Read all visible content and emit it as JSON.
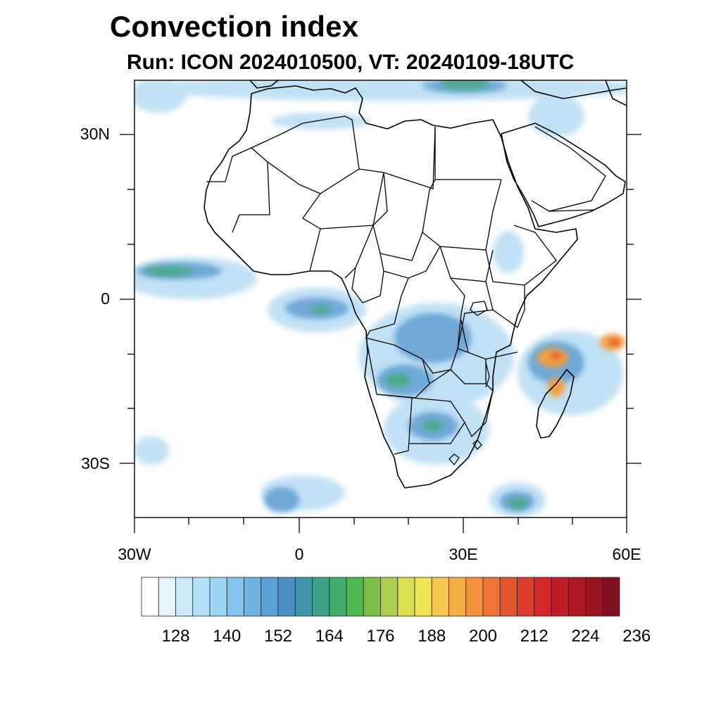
{
  "title": "Convection index",
  "subtitle": "Run: ICON 2024010500,  VT: 20240109-18UTC",
  "map": {
    "lon_range": [
      -30,
      60
    ],
    "lat_range": [
      -40,
      40
    ],
    "lat_labels": [
      "30N",
      "0",
      "30S"
    ],
    "lon_labels": [
      "30W",
      "0",
      "30E",
      "60E"
    ]
  },
  "colorbar": {
    "labels": [
      "128",
      "140",
      "152",
      "164",
      "176",
      "188",
      "200",
      "212",
      "224",
      "236"
    ],
    "colors": [
      "#ffffff",
      "#e6f4fc",
      "#cdeaf8",
      "#b6e0f6",
      "#9fd6f3",
      "#84c4ec",
      "#6fb3e3",
      "#5a9fd6",
      "#4a8fc4",
      "#4096a8",
      "#3ea28a",
      "#42ad6a",
      "#4cb84f",
      "#7dc046",
      "#acce4c",
      "#d8df50",
      "#f0e356",
      "#f6c84f",
      "#f6ae46",
      "#f3913d",
      "#ed7235",
      "#e6542f",
      "#dd3b2c",
      "#d5262a",
      "#c21d28",
      "#ad1826",
      "#971523",
      "#811020"
    ]
  },
  "fields": {
    "low": "#b9def5",
    "mid": "#6fa9d6",
    "high": "#4ca98c",
    "strong": "#62b74a",
    "hot": "#f2a040",
    "extreme": "#e2412d"
  }
}
